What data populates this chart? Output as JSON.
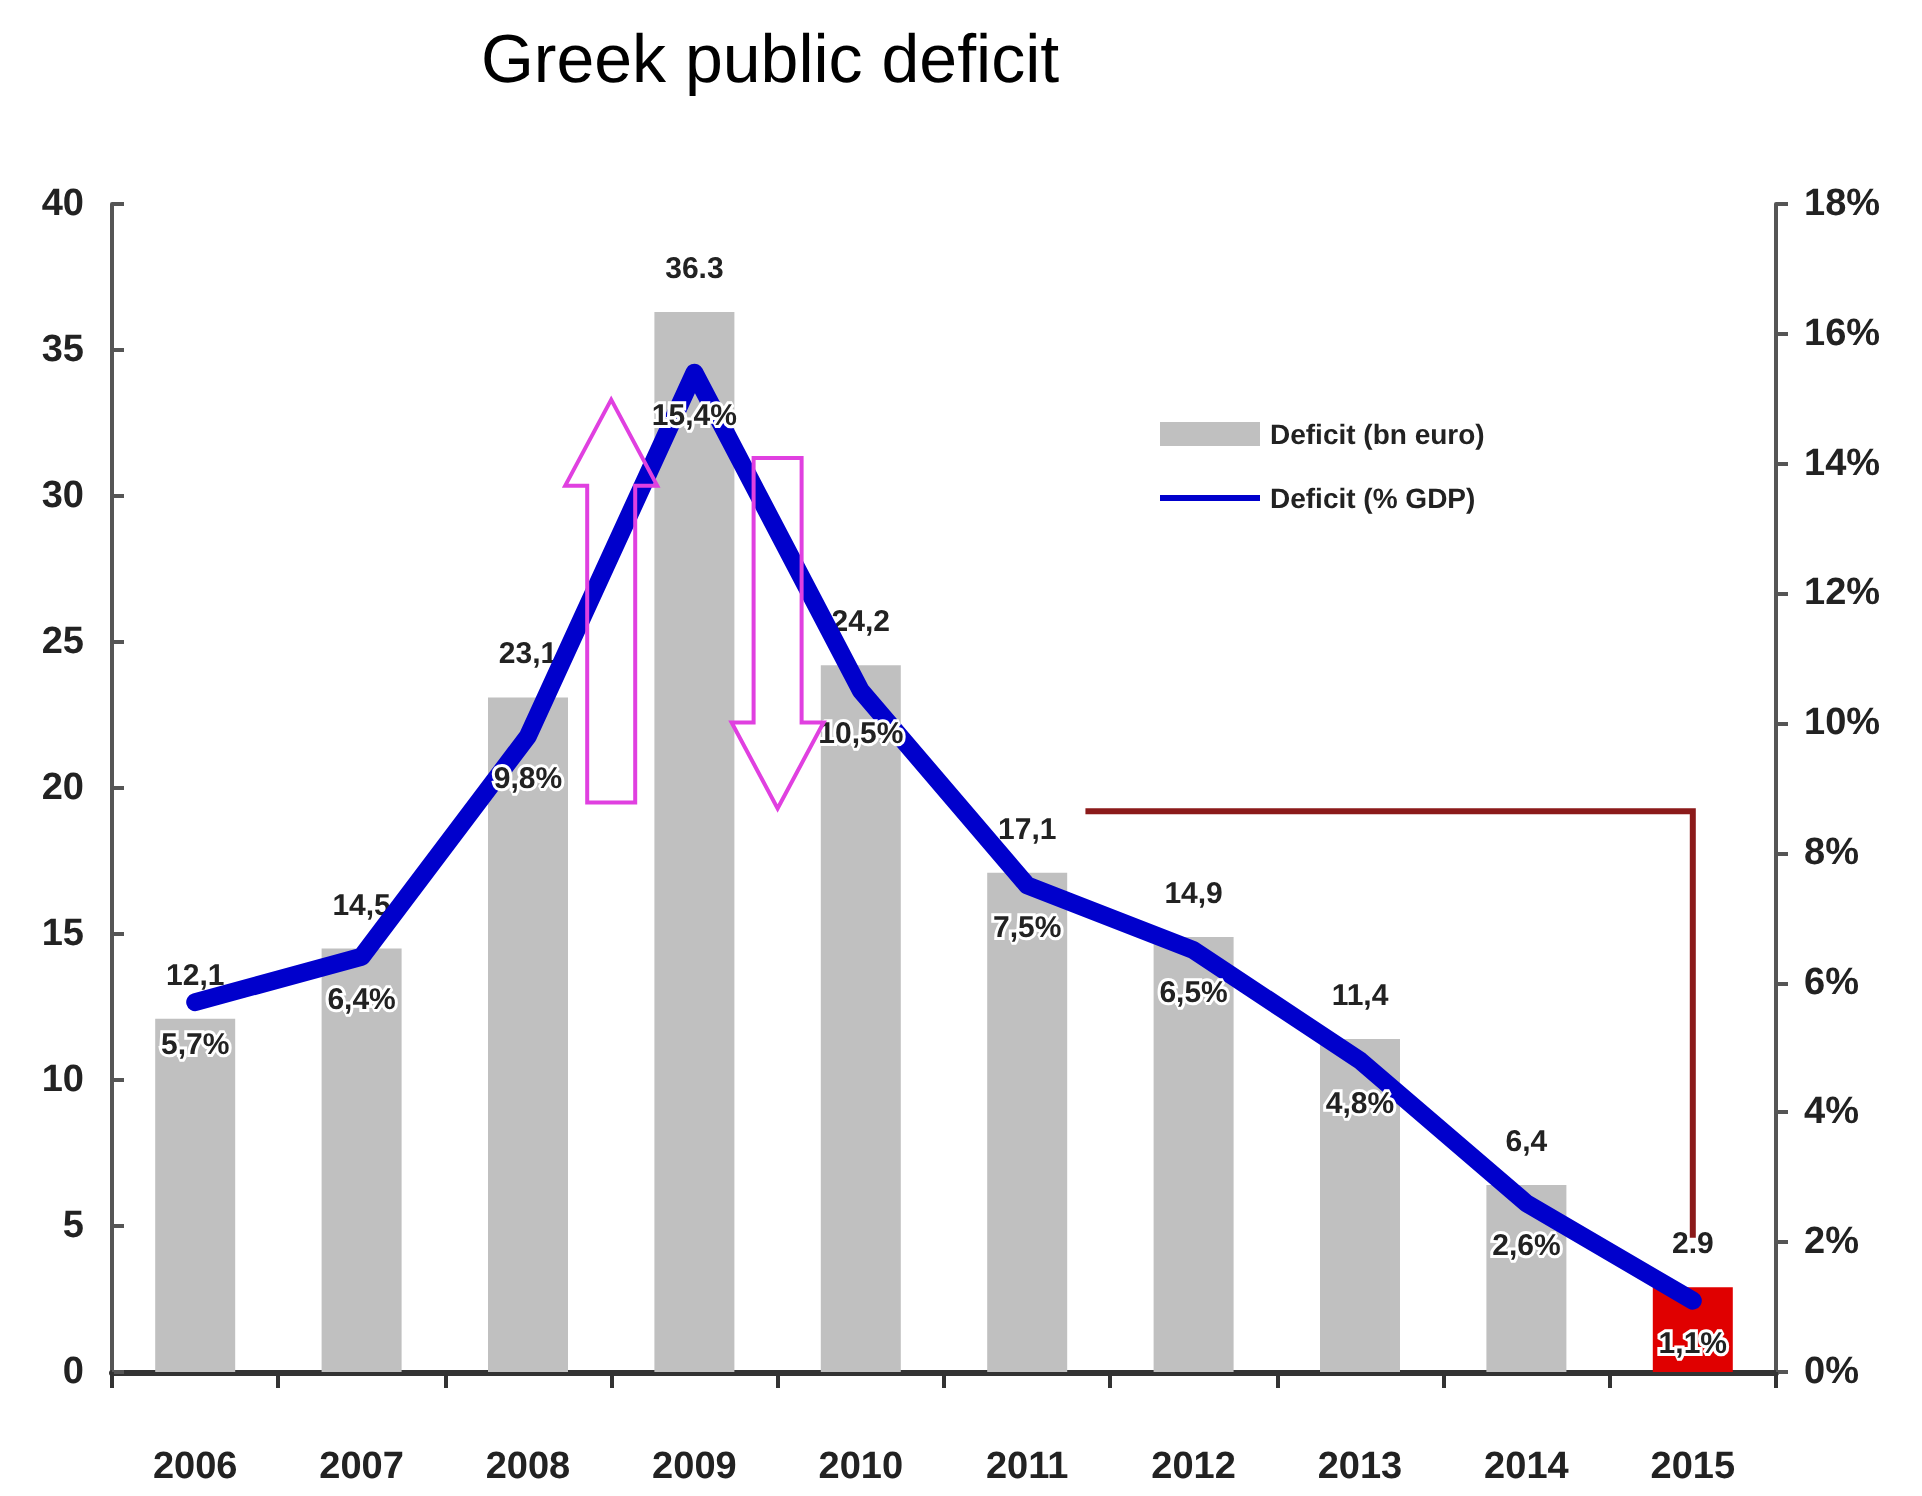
{
  "chart_data": {
    "type": "bar",
    "title": "Greek public deficit",
    "categories": [
      "2006",
      "2007",
      "2008",
      "2009",
      "2010",
      "2011",
      "2012",
      "2013",
      "2014",
      "2015"
    ],
    "series": [
      {
        "name": "Deficit (bn euro)",
        "color": "#c0c0c0",
        "colors": [
          "#c0c0c0",
          "#c0c0c0",
          "#c0c0c0",
          "#c0c0c0",
          "#c0c0c0",
          "#c0c0c0",
          "#c0c0c0",
          "#c0c0c0",
          "#c0c0c0",
          "#e00000"
        ],
        "values": [
          12.1,
          14.5,
          23.1,
          36.3,
          24.2,
          17.1,
          14.9,
          11.4,
          6.4,
          2.9
        ],
        "value_labels": [
          "12,1",
          "14,5",
          "23,1",
          "36.3",
          "24,2",
          "17,1",
          "14,9",
          "11,4",
          "6,4",
          "2.9"
        ]
      },
      {
        "name": "Deficit (% GDP)",
        "type": "line",
        "axis": "y2",
        "color": "#0000cc",
        "values": [
          5.7,
          6.4,
          9.8,
          15.4,
          10.5,
          7.5,
          6.5,
          4.8,
          2.6,
          1.1
        ],
        "value_labels": [
          "5,7%",
          "6,4%",
          "9,8%",
          "15,4%",
          "10,5%",
          "7,5%",
          "6,5%",
          "4,8%",
          "2,6%",
          "1,1%"
        ]
      }
    ],
    "ylim": [
      0,
      40
    ],
    "yticks": [
      0,
      5,
      10,
      15,
      20,
      25,
      30,
      35,
      40
    ],
    "y2lim": [
      0,
      18
    ],
    "y2ticks": [
      {
        "value": 0,
        "label": "0%"
      },
      {
        "value": 2,
        "label": "2%"
      },
      {
        "value": 4,
        "label": "4%"
      },
      {
        "value": 6,
        "label": "6%"
      },
      {
        "value": 8,
        "label": "8%"
      },
      {
        "value": 10,
        "label": "10%"
      },
      {
        "value": 12,
        "label": "12%"
      },
      {
        "value": 14,
        "label": "14%"
      },
      {
        "value": 16,
        "label": "16%"
      },
      {
        "value": 18,
        "label": "18%"
      }
    ],
    "grid": false,
    "legend": "top right",
    "marker": "none",
    "line_style": "solid"
  }
}
